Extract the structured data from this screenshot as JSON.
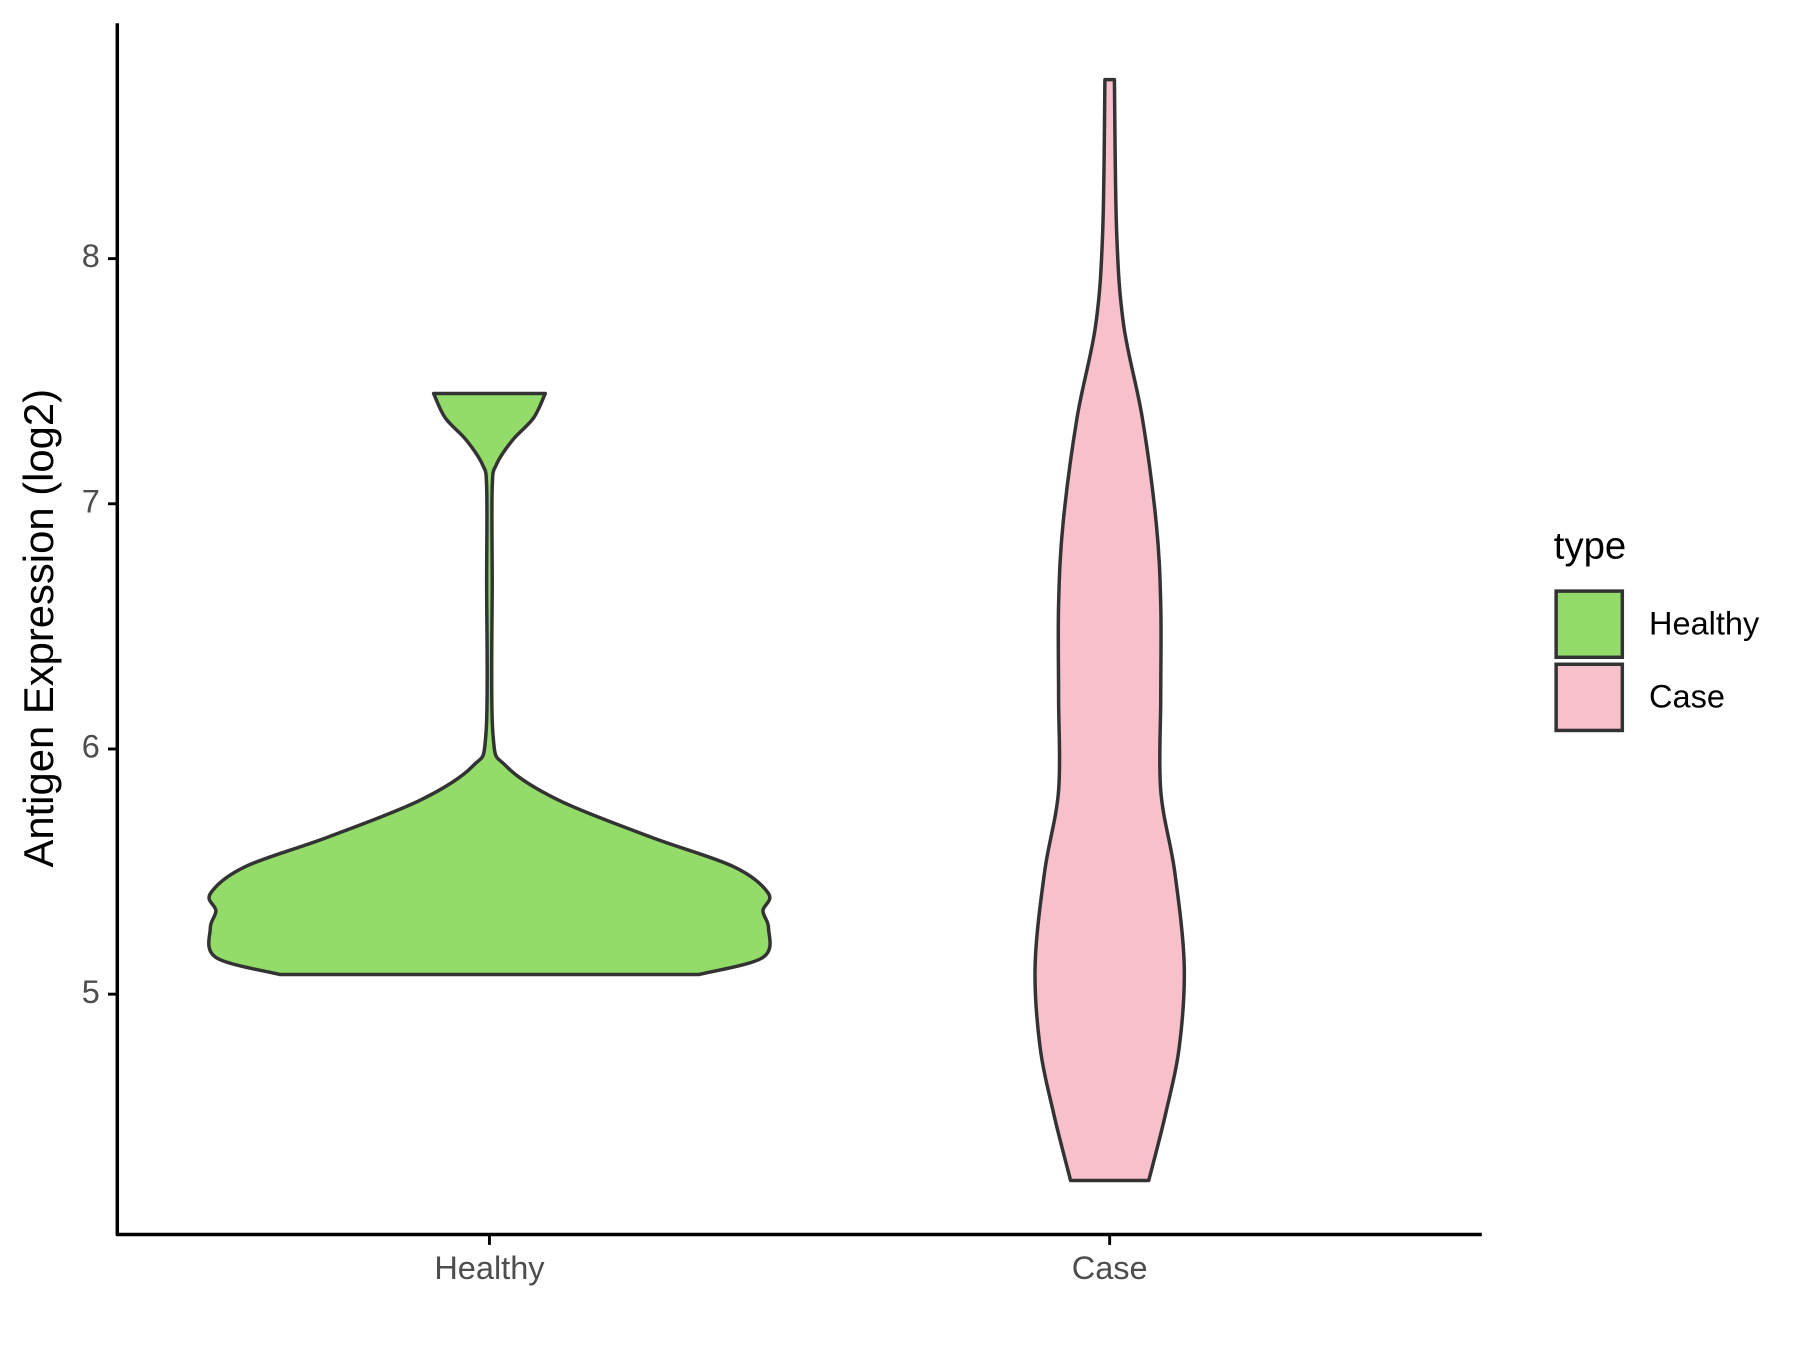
{
  "chart_data": {
    "type": "violin",
    "y_label": "Antigen Expression (log2)",
    "categories": [
      "Healthy",
      "Case"
    ],
    "legend_title": "type",
    "legend_position": "right",
    "ylim": [
      4.02,
      8.96
    ],
    "yticks": [
      5,
      6,
      7,
      8
    ],
    "series": [
      {
        "name": "Healthy",
        "color": "#93dc6a",
        "y": [
          5.08,
          5.15,
          5.27,
          5.34,
          5.41,
          5.52,
          5.64,
          5.79,
          5.93,
          6.07,
          6.69,
          7.07,
          7.16,
          7.26,
          7.35,
          7.45
        ],
        "widths": [
          0.75,
          0.98,
          1.0,
          0.98,
          1.0,
          0.875,
          0.58,
          0.25,
          0.06,
          0.012,
          0.01,
          0.01,
          0.025,
          0.083,
          0.158,
          0.2
        ]
      },
      {
        "name": "Case",
        "color": "#f7c0cb",
        "y": [
          4.24,
          4.51,
          4.79,
          5.12,
          5.5,
          5.83,
          6.21,
          6.59,
          6.92,
          7.35,
          7.73,
          8.11,
          8.73
        ],
        "widths": [
          0.14,
          0.2,
          0.25,
          0.267,
          0.233,
          0.183,
          0.183,
          0.183,
          0.167,
          0.117,
          0.05,
          0.025,
          0.017
        ]
      }
    ]
  }
}
